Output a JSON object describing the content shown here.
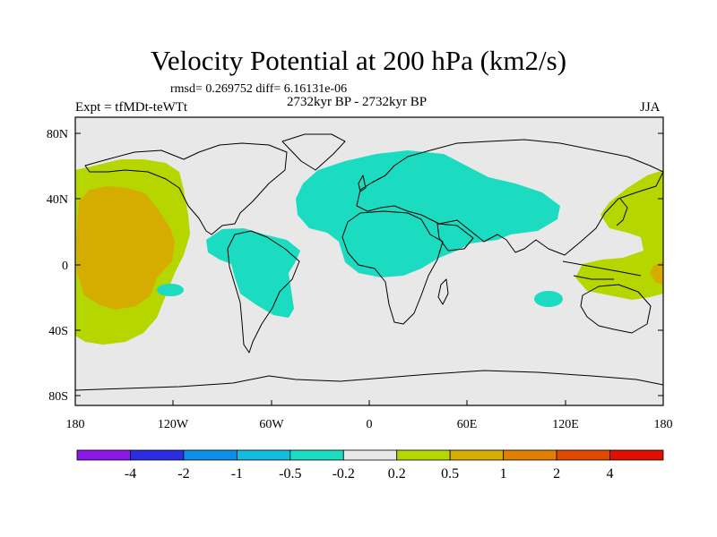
{
  "title": "Velocity Potential at 200 hPa (km2/s)",
  "stats": "rmsd= 0.269752 diff= 6.16131e-06",
  "left_label": "Expt = tfMDt-teWTt",
  "center_label": "2732kyr BP - 2732kyr BP",
  "right_label": "JJA",
  "lat_ticks": [
    "80N",
    "40N",
    "0",
    "40S",
    "80S"
  ],
  "lon_ticks": [
    "180",
    "120W",
    "60W",
    "0",
    "60E",
    "120E",
    "180"
  ],
  "colorbar": {
    "labels": [
      "-4",
      "-2",
      "-1",
      "-0.5",
      "-0.2",
      "0.2",
      "0.5",
      "1",
      "2",
      "4"
    ],
    "colors": [
      "#8a17e6",
      "#2b2ee0",
      "#0e8ee8",
      "#12bde0",
      "#1bdcc0",
      "#e8e8e8",
      "#b6d600",
      "#d4ad00",
      "#e08000",
      "#e04a00",
      "#e01000"
    ]
  },
  "colors": {
    "ocean_bg": "#e8e8e8",
    "negative_fill": "#1bdcc0",
    "positive_low": "#b6d600",
    "positive_mid": "#d4ad00",
    "positive_high": "#e08000"
  }
}
